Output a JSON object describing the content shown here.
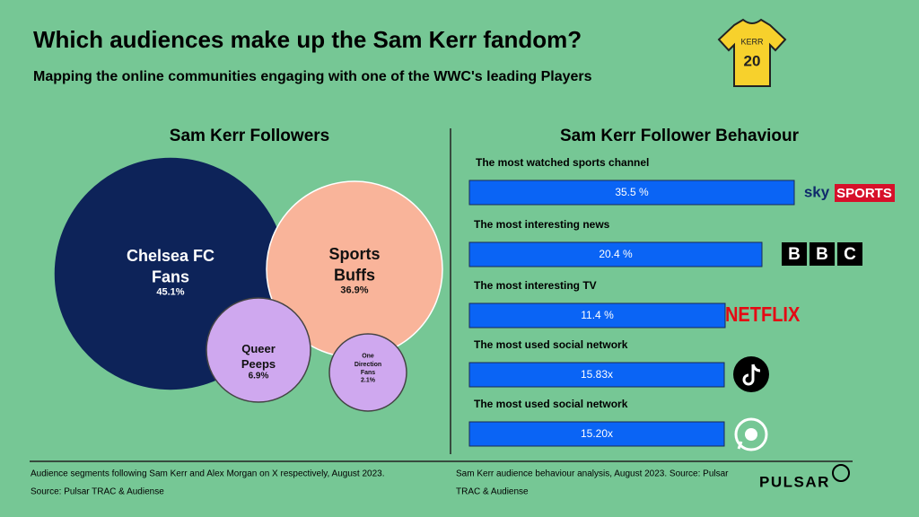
{
  "header": {
    "title": "Which audiences make up the Sam Kerr fandom?",
    "subtitle": "Mapping the online communities engaging with one of the WWC's leading Players",
    "shirt_name": "KERR",
    "shirt_number": "20"
  },
  "left": {
    "title": "Sam Kerr Followers",
    "segments": [
      {
        "lines": [
          "Chelsea FC",
          "Fans"
        ],
        "value": "45.1%"
      },
      {
        "lines": [
          "Sports",
          "Buffs"
        ],
        "value": "36.9%"
      },
      {
        "lines": [
          "Queer",
          "Peeps"
        ],
        "value": "6.9%"
      },
      {
        "lines": [
          "One",
          "Direction",
          "Fans"
        ],
        "value": "2.1%"
      }
    ]
  },
  "right": {
    "title": "Sam Kerr Follower Behaviour",
    "rows": [
      {
        "label": "The most watched sports channel",
        "value": "35.5 %",
        "logo": [
          "sky",
          "SPORTS"
        ]
      },
      {
        "label": "The most interesting news",
        "value": "20.4 %",
        "logo": [
          "B",
          "B",
          "C"
        ]
      },
      {
        "label": "The most interesting TV",
        "value": "11.4 %",
        "logo": [
          "NETFLIX"
        ]
      },
      {
        "label": "The most used social network",
        "value": "15.83x",
        "logo": []
      },
      {
        "label": "The most used social network",
        "value": "15.20x",
        "logo": []
      }
    ]
  },
  "footer": {
    "left": [
      "Audience segments following Sam Kerr and Alex Morgan on X respectively, August 2023.",
      "Source: Pulsar TRAC & Audiense"
    ],
    "right": [
      "Sam Kerr  audience behaviour analysis, August 2023. Source: Pulsar",
      "TRAC & Audiense"
    ],
    "brand": "PULSAR"
  }
}
